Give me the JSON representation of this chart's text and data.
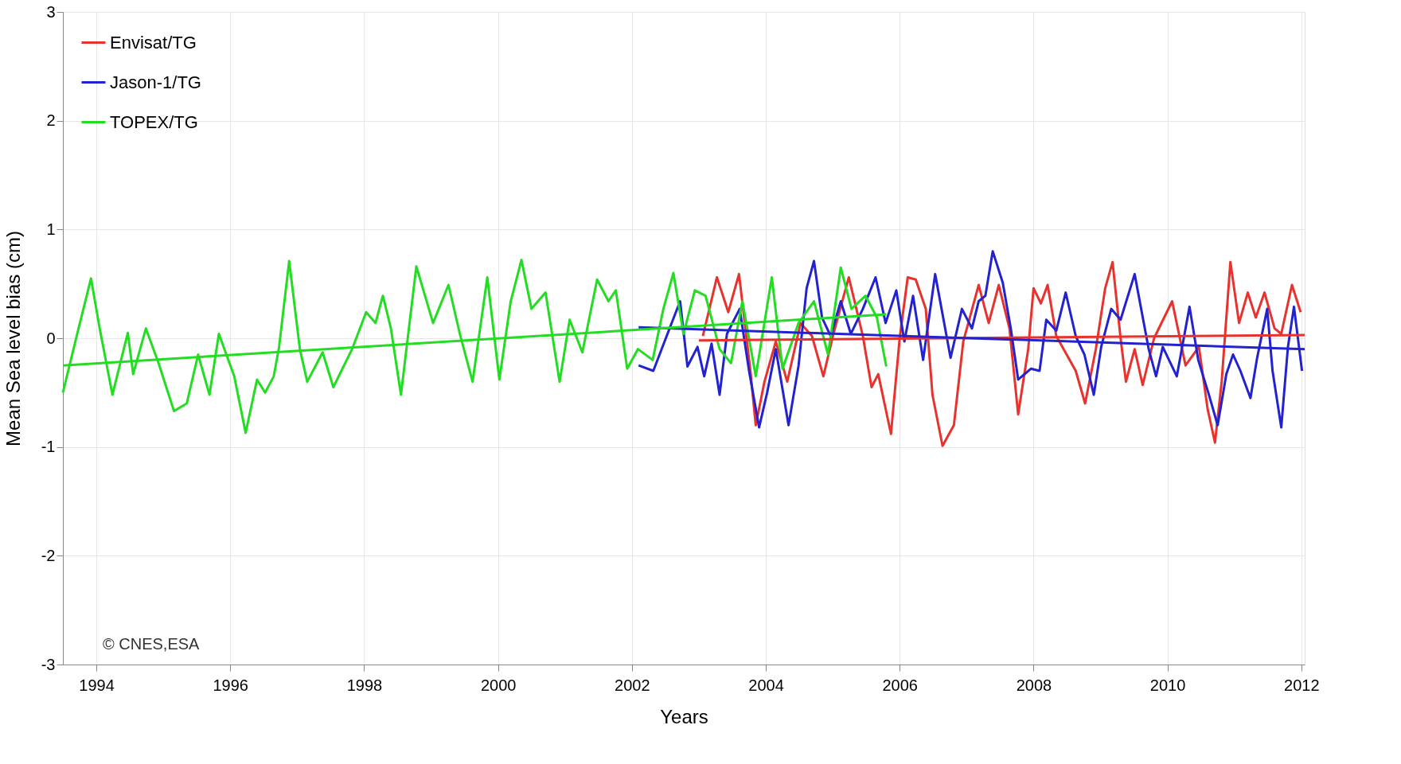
{
  "chart_data": {
    "type": "line",
    "xlabel": "Years",
    "ylabel": "Mean Sea level bias (cm)",
    "xlim": [
      1993.5,
      2012.05
    ],
    "xticks": [
      1994,
      1996,
      1998,
      2000,
      2002,
      2004,
      2006,
      2008,
      2010,
      2012
    ],
    "ylim": [
      -3,
      3
    ],
    "yticks": [
      -3,
      -2,
      -1,
      0,
      1,
      2,
      3
    ],
    "grid": true,
    "legend": "top left",
    "line_style": "solid",
    "annotations": [
      "© CNES,ESA"
    ],
    "series": [
      {
        "name": "Envisat/TG",
        "color": "#e8322e",
        "x": [
          2003.06,
          2003.27,
          2003.44,
          2003.6,
          2003.77,
          2003.85,
          2003.98,
          2004.15,
          2004.32,
          2004.52,
          2004.69,
          2004.86,
          2005.01,
          2005.24,
          2005.45,
          2005.58,
          2005.68,
          2005.87,
          2006.0,
          2006.12,
          2006.24,
          2006.39,
          2006.49,
          2006.64,
          2006.81,
          2006.95,
          2007.18,
          2007.33,
          2007.48,
          2007.64,
          2007.77,
          2007.92,
          2008.0,
          2008.11,
          2008.21,
          2008.34,
          2008.63,
          2008.77,
          2008.93,
          2009.07,
          2009.18,
          2009.3,
          2009.38,
          2009.51,
          2009.63,
          2009.8,
          2010.07,
          2010.27,
          2010.47,
          2010.6,
          2010.71,
          2010.81,
          2010.94,
          2011.07,
          2011.2,
          2011.32,
          2011.45,
          2011.6,
          2011.7,
          2011.86,
          2011.99
        ],
        "values": [
          0.02,
          0.56,
          0.24,
          0.59,
          -0.3,
          -0.8,
          -0.4,
          -0.03,
          -0.4,
          0.14,
          0.02,
          -0.35,
          0.04,
          0.56,
          0.02,
          -0.45,
          -0.33,
          -0.88,
          0.0,
          0.56,
          0.54,
          0.27,
          -0.52,
          -0.99,
          -0.8,
          -0.03,
          0.49,
          0.14,
          0.49,
          0.09,
          -0.7,
          -0.1,
          0.46,
          0.32,
          0.49,
          0.02,
          -0.3,
          -0.6,
          -0.1,
          0.46,
          0.7,
          0.0,
          -0.4,
          -0.1,
          -0.43,
          0.0,
          0.34,
          -0.25,
          -0.08,
          -0.65,
          -0.96,
          -0.4,
          0.7,
          0.14,
          0.42,
          0.19,
          0.42,
          0.09,
          0.04,
          0.49,
          0.24
        ]
      },
      {
        "name": "Jason-1/TG",
        "color": "#2222d0",
        "x": [
          2002.1,
          2002.32,
          2002.55,
          2002.72,
          2002.83,
          2002.98,
          2003.08,
          2003.19,
          2003.31,
          2003.42,
          2003.61,
          2003.75,
          2003.9,
          2004.02,
          2004.15,
          2004.34,
          2004.49,
          2004.61,
          2004.72,
          2004.84,
          2004.97,
          2005.12,
          2005.27,
          2005.45,
          2005.64,
          2005.79,
          2005.95,
          2006.07,
          2006.2,
          2006.35,
          2006.53,
          2006.76,
          2006.93,
          2007.08,
          2007.18,
          2007.28,
          2007.39,
          2007.54,
          2007.66,
          2007.77,
          2007.96,
          2008.09,
          2008.19,
          2008.34,
          2008.48,
          2008.63,
          2008.76,
          2008.9,
          2009.01,
          2009.16,
          2009.3,
          2009.51,
          2009.72,
          2009.83,
          2009.93,
          2010.14,
          2010.33,
          2010.46,
          2010.62,
          2010.75,
          2010.88,
          2010.98,
          2011.09,
          2011.24,
          2011.34,
          2011.49,
          2011.57,
          2011.7,
          2011.8,
          2011.89,
          2012.01
        ],
        "values": [
          -0.25,
          -0.3,
          0.07,
          0.34,
          -0.26,
          -0.08,
          -0.35,
          -0.05,
          -0.52,
          0.04,
          0.27,
          -0.3,
          -0.82,
          -0.5,
          -0.1,
          -0.8,
          -0.25,
          0.46,
          0.71,
          0.19,
          0.02,
          0.34,
          0.04,
          0.27,
          0.56,
          0.14,
          0.44,
          -0.03,
          0.39,
          -0.2,
          0.59,
          -0.18,
          0.27,
          0.09,
          0.34,
          0.39,
          0.8,
          0.51,
          0.09,
          -0.38,
          -0.28,
          -0.3,
          0.17,
          0.07,
          0.42,
          0.02,
          -0.15,
          -0.52,
          -0.08,
          0.27,
          0.17,
          0.59,
          -0.1,
          -0.35,
          -0.08,
          -0.35,
          0.29,
          -0.2,
          -0.52,
          -0.8,
          -0.33,
          -0.15,
          -0.3,
          -0.55,
          -0.18,
          0.27,
          -0.3,
          -0.82,
          -0.08,
          0.29,
          -0.3
        ]
      },
      {
        "name": "TOPEX/TG",
        "color": "#22dd22",
        "x": [
          1993.5,
          1993.71,
          1993.92,
          1994.05,
          1994.24,
          1994.47,
          1994.55,
          1994.74,
          1994.93,
          1995.16,
          1995.35,
          1995.52,
          1995.69,
          1995.83,
          1996.06,
          1996.23,
          1996.4,
          1996.52,
          1996.65,
          1996.73,
          1996.88,
          1997.04,
          1997.15,
          1997.38,
          1997.54,
          1997.82,
          1998.03,
          1998.17,
          1998.28,
          1998.4,
          1998.55,
          1998.78,
          1999.03,
          1999.26,
          1999.43,
          1999.62,
          1999.84,
          2000.02,
          2000.19,
          2000.35,
          2000.5,
          2000.71,
          2000.92,
          2001.07,
          2001.26,
          2001.48,
          2001.65,
          2001.76,
          2001.93,
          2002.09,
          2002.31,
          2002.47,
          2002.62,
          2002.77,
          2002.94,
          2003.1,
          2003.31,
          2003.48,
          2003.65,
          2003.85,
          2004.09,
          2004.25,
          2004.49,
          2004.72,
          2004.93,
          2005.12,
          2005.28,
          2005.49,
          2005.66,
          2005.8
        ],
        "values": [
          -0.5,
          0.03,
          0.55,
          0.09,
          -0.52,
          0.05,
          -0.33,
          0.09,
          -0.23,
          -0.67,
          -0.6,
          -0.15,
          -0.52,
          0.04,
          -0.35,
          -0.87,
          -0.38,
          -0.5,
          -0.35,
          -0.08,
          0.71,
          -0.1,
          -0.4,
          -0.13,
          -0.45,
          -0.1,
          0.24,
          0.14,
          0.39,
          0.09,
          -0.52,
          0.66,
          0.14,
          0.49,
          0.04,
          -0.4,
          0.56,
          -0.38,
          0.34,
          0.72,
          0.27,
          0.42,
          -0.4,
          0.17,
          -0.13,
          0.54,
          0.34,
          0.44,
          -0.28,
          -0.1,
          -0.2,
          0.27,
          0.6,
          0.04,
          0.44,
          0.39,
          -0.1,
          -0.23,
          0.34,
          -0.35,
          0.56,
          -0.28,
          0.14,
          0.34,
          -0.15,
          0.65,
          0.27,
          0.39,
          0.19,
          -0.26
        ]
      },
      {
        "color": "#e8322e",
        "x": [
          2003.0,
          2012.05
        ],
        "values": [
          -0.02,
          0.03
        ]
      },
      {
        "color": "#2222d0",
        "x": [
          2002.1,
          2012.05
        ],
        "values": [
          0.1,
          -0.1
        ]
      },
      {
        "color": "#22dd22",
        "x": [
          1993.5,
          2005.8
        ],
        "values": [
          -0.25,
          0.22
        ]
      }
    ]
  }
}
